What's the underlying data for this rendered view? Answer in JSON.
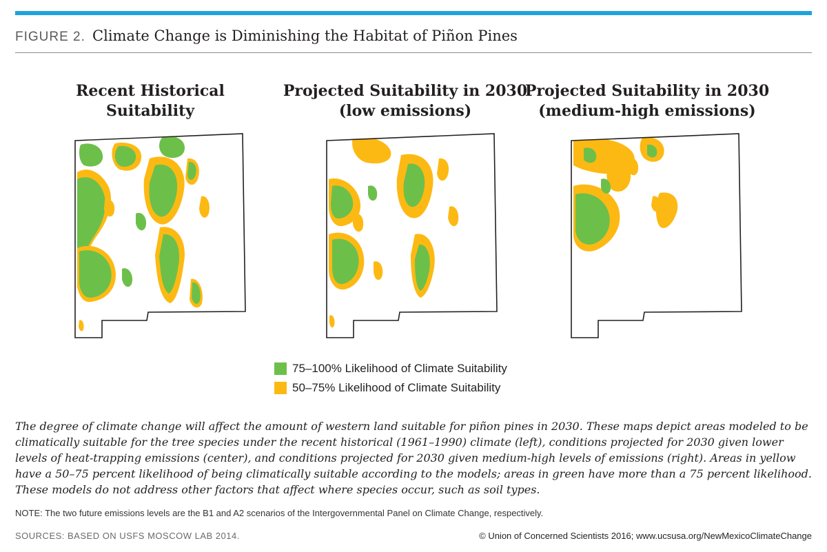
{
  "header": {
    "figure_label": "FIGURE 2.",
    "title": "Climate Change is Diminishing the Habitat of Piñon Pines"
  },
  "maps": [
    {
      "title_line1": "Recent Historical",
      "title_line2": "Suitability"
    },
    {
      "title_line1": "Projected Suitability in 2030",
      "title_line2": "(low emissions)"
    },
    {
      "title_line1": "Projected Suitability in 2030",
      "title_line2": "(medium-high emissions)"
    }
  ],
  "legend": {
    "items": [
      {
        "label": "75–100% Likelihood of Climate Suitability",
        "color": "#6cc04a"
      },
      {
        "label": "50–75% Likelihood of Climate Suitability",
        "color": "#fdb913"
      }
    ]
  },
  "caption": "The degree of climate change will affect the amount of western land suitable for piñon pines in 2030. These maps depict areas modeled to be climatically suitable for the tree species under the recent historical (1961–1990) climate (left), conditions projected for 2030 given lower levels of heat-trapping emissions (center), and conditions projected for 2030 given medium-high levels of emissions (right). Areas in yellow have a 50–75 percent likelihood of being climatically suitable according to the models; areas in green have more than a 75 percent likelihood. These models do not address other factors that affect where species occur, such as soil types.",
  "note": "NOTE: The two future emissions levels are the B1 and A2 scenarios of the Intergovernmental Panel on Climate Change, respectively.",
  "sources": "SOURCES: BASED ON USFS MOSCOW LAB 2014.",
  "credit": "© Union of Concerned Scientists 2016; www.ucsusa.org/NewMexicoClimateChange",
  "colors": {
    "accent_bar": "#1fa2dc",
    "green": "#6cc04a",
    "yellow": "#fdb913"
  }
}
